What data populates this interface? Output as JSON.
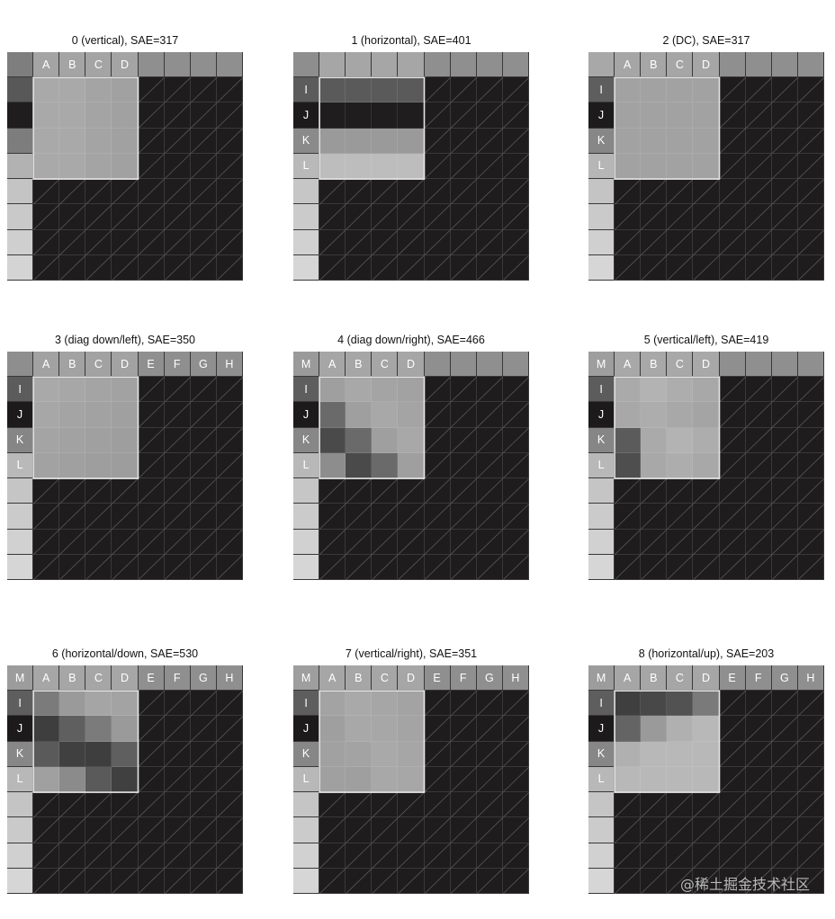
{
  "panels": [
    {
      "title": "0 (vertical), SAE=317",
      "top": [
        "",
        "A",
        "B",
        "C",
        "D",
        "",
        "",
        "",
        ""
      ],
      "left": [
        "",
        "",
        "",
        "",
        ""
      ],
      "rowCol": {
        "0": "#7e7e7e",
        "top": "#a4a4a4",
        "l": [
          "#585858",
          "#1f1d1e",
          "#7d7d7d",
          "#b2b2b2",
          "#c4c4c4",
          "#c9c9c9",
          "#cfcfcf",
          "#d4d4d4"
        ]
      },
      "pred": [
        [
          "#a9a9a9",
          "#a9a9a9",
          "#a4a4a4",
          "#a1a1a1"
        ],
        [
          "#a9a9a9",
          "#a9a9a9",
          "#a4a4a4",
          "#a1a1a1"
        ],
        [
          "#a9a9a9",
          "#a9a9a9",
          "#a4a4a4",
          "#a1a1a1"
        ],
        [
          "#a9a9a9",
          "#a9a9a9",
          "#a4a4a4",
          "#a1a1a1"
        ]
      ]
    },
    {
      "title": "1 (horizontal), SAE=401",
      "top": [
        "",
        "",
        "",
        "",
        "",
        "",
        "",
        "",
        ""
      ],
      "left": [
        "I",
        "J",
        "K",
        "L"
      ],
      "rowCol": {
        "0": "#8e8e8e",
        "top": "#a6a6a6",
        "l": [
          "#5c5c5c",
          "#1c1a1b",
          "#8a8a8a",
          "#b9b9b9",
          "#c6c6c6",
          "#cbcbcb",
          "#d1d1d1",
          "#d6d6d6"
        ]
      },
      "pred": [
        [
          "#5a5a5a",
          "#5a5a5a",
          "#5a5a5a",
          "#5a5a5a"
        ],
        [
          "#1f1d1e",
          "#1f1d1e",
          "#1f1d1e",
          "#1f1d1e"
        ],
        [
          "#9a9a9a",
          "#9a9a9a",
          "#9a9a9a",
          "#9a9a9a"
        ],
        [
          "#bdbdbd",
          "#bdbdbd",
          "#bdbdbd",
          "#bdbdbd"
        ]
      ]
    },
    {
      "title": "2 (DC), SAE=317",
      "top": [
        "",
        "A",
        "B",
        "C",
        "D",
        "",
        "",
        "",
        ""
      ],
      "left": [
        "I",
        "J",
        "K",
        "L"
      ],
      "rowCol": {
        "0": "#a8a8a8",
        "top": "#a6a6a6",
        "l": [
          "#5e5e5e",
          "#1d1b1c",
          "#878787",
          "#b6b6b6",
          "#c4c4c4",
          "#cacaca",
          "#d0d0d0",
          "#d6d6d6"
        ]
      },
      "pred": [
        [
          "#a2a2a2",
          "#a2a2a2",
          "#a2a2a2",
          "#a2a2a2"
        ],
        [
          "#a2a2a2",
          "#a2a2a2",
          "#a2a2a2",
          "#a2a2a2"
        ],
        [
          "#a2a2a2",
          "#a2a2a2",
          "#a2a2a2",
          "#a2a2a2"
        ],
        [
          "#a2a2a2",
          "#a2a2a2",
          "#a2a2a2",
          "#a2a2a2"
        ]
      ]
    },
    {
      "title": "3 (diag down/left), SAE=350",
      "top": [
        "",
        "A",
        "B",
        "C",
        "D",
        "E",
        "F",
        "G",
        "H"
      ],
      "left": [
        "I",
        "J",
        "K",
        "L"
      ],
      "rowCol": {
        "0": "#8e8e8e",
        "top": "#a2a2a2",
        "l": [
          "#5c5c5c",
          "#1c1a1b",
          "#868686",
          "#b9b9b9",
          "#c5c5c5",
          "#cbcbcb",
          "#d1d1d1",
          "#d6d6d6"
        ]
      },
      "pred": [
        [
          "#a9a9a9",
          "#a7a7a7",
          "#a4a4a4",
          "#a2a2a2"
        ],
        [
          "#a7a7a7",
          "#a4a4a4",
          "#a2a2a2",
          "#a0a0a0"
        ],
        [
          "#a4a4a4",
          "#a2a2a2",
          "#a0a0a0",
          "#9e9e9e"
        ],
        [
          "#a2a2a2",
          "#a0a0a0",
          "#9e9e9e",
          "#9d9d9d"
        ]
      ]
    },
    {
      "title": "4 (diag down/right), SAE=466",
      "top": [
        "M",
        "A",
        "B",
        "C",
        "D",
        "",
        "",
        "",
        ""
      ],
      "left": [
        "I",
        "J",
        "K",
        "L"
      ],
      "rowCol": {
        "0": "#9a9a9a",
        "top": "#a6a6a6",
        "l": [
          "#5e5e5e",
          "#1c1a1b",
          "#878787",
          "#b8b8b8",
          "#c6c6c6",
          "#cbcbcb",
          "#d1d1d1",
          "#d6d6d6"
        ]
      },
      "pred": [
        [
          "#9f9f9f",
          "#a8a8a8",
          "#a4a4a4",
          "#a2a2a2"
        ],
        [
          "#6a6a6a",
          "#9f9f9f",
          "#a8a8a8",
          "#a4a4a4"
        ],
        [
          "#4a4a4a",
          "#6a6a6a",
          "#9f9f9f",
          "#a8a8a8"
        ],
        [
          "#8d8d8d",
          "#4a4a4a",
          "#6a6a6a",
          "#9f9f9f"
        ]
      ]
    },
    {
      "title": "5 (vertical/left), SAE=419",
      "top": [
        "M",
        "A",
        "B",
        "C",
        "D",
        "",
        "",
        "",
        ""
      ],
      "left": [
        "I",
        "J",
        "K",
        "L"
      ],
      "rowCol": {
        "0": "#9e9e9e",
        "top": "#a8a8a8",
        "l": [
          "#5c5c5c",
          "#1c1a1b",
          "#868686",
          "#b8b8b8",
          "#c5c5c5",
          "#cbcbcb",
          "#d1d1d1",
          "#d6d6d6"
        ]
      },
      "pred": [
        [
          "#aaaaaa",
          "#b3b3b3",
          "#adadad",
          "#a8a8a8"
        ],
        [
          "#a8a8a8",
          "#adadad",
          "#a8a8a8",
          "#a4a4a4"
        ],
        [
          "#5b5b5b",
          "#aaaaaa",
          "#b3b3b3",
          "#adadad"
        ],
        [
          "#4e4e4e",
          "#a8a8a8",
          "#adadad",
          "#a8a8a8"
        ]
      ]
    },
    {
      "title": "6 (horizontal/down, SAE=530",
      "top": [
        "M",
        "A",
        "B",
        "C",
        "D",
        "E",
        "F",
        "G",
        "H"
      ],
      "left": [
        "I",
        "J",
        "K",
        "L"
      ],
      "rowCol": {
        "0": "#9c9c9c",
        "top": "#a6a6a6",
        "l": [
          "#5e5e5e",
          "#1c1a1b",
          "#878787",
          "#b8b8b8",
          "#c4c4c4",
          "#cacaca",
          "#d0d0d0",
          "#d6d6d6"
        ]
      },
      "pred": [
        [
          "#7b7b7b",
          "#9a9a9a",
          "#a5a5a5",
          "#a3a3a3"
        ],
        [
          "#3e3e3e",
          "#5f5f5f",
          "#7b7b7b",
          "#9a9a9a"
        ],
        [
          "#5a5a5a",
          "#404040",
          "#3e3e3e",
          "#5f5f5f"
        ],
        [
          "#a0a0a0",
          "#8b8b8b",
          "#5a5a5a",
          "#404040"
        ]
      ]
    },
    {
      "title": "7 (vertical/right), SAE=351",
      "top": [
        "M",
        "A",
        "B",
        "C",
        "D",
        "E",
        "F",
        "G",
        "H"
      ],
      "left": [
        "I",
        "J",
        "K",
        "L"
      ],
      "rowCol": {
        "0": "#9e9e9e",
        "top": "#a6a6a6",
        "l": [
          "#5e5e5e",
          "#1c1a1b",
          "#878787",
          "#b8b8b8",
          "#c5c5c5",
          "#cbcbcb",
          "#d1d1d1",
          "#d6d6d6"
        ]
      },
      "pred": [
        [
          "#a3a3a3",
          "#a9a9a9",
          "#a6a6a6",
          "#a3a3a3"
        ],
        [
          "#9f9f9f",
          "#a8a8a8",
          "#a7a7a7",
          "#a4a4a4"
        ],
        [
          "#a1a1a1",
          "#a3a3a3",
          "#a9a9a9",
          "#a6a6a6"
        ],
        [
          "#a0a0a0",
          "#9f9f9f",
          "#a8a8a8",
          "#a7a7a7"
        ]
      ]
    },
    {
      "title": "8 (horizontal/up), SAE=203",
      "top": [
        "M",
        "A",
        "B",
        "C",
        "D",
        "E",
        "F",
        "G",
        "H"
      ],
      "left": [
        "I",
        "J",
        "K",
        "L"
      ],
      "rowCol": {
        "0": "#9c9c9c",
        "top": "#a6a6a6",
        "l": [
          "#5e5e5e",
          "#1c1a1b",
          "#878787",
          "#b8b8b8",
          "#c5c5c5",
          "#cbcbcb",
          "#d1d1d1",
          "#d6d6d6"
        ]
      },
      "pred": [
        [
          "#3f3f3f",
          "#484848",
          "#525252",
          "#7a7a7a"
        ],
        [
          "#646464",
          "#9a9a9a",
          "#b0b0b0",
          "#b8b8b8"
        ],
        [
          "#b0b0b0",
          "#b8b8b8",
          "#b8b8b8",
          "#b8b8b8"
        ],
        [
          "#b8b8b8",
          "#b8b8b8",
          "#b8b8b8",
          "#b8b8b8"
        ]
      ]
    }
  ],
  "watermark": "@稀土掘金技术社区"
}
